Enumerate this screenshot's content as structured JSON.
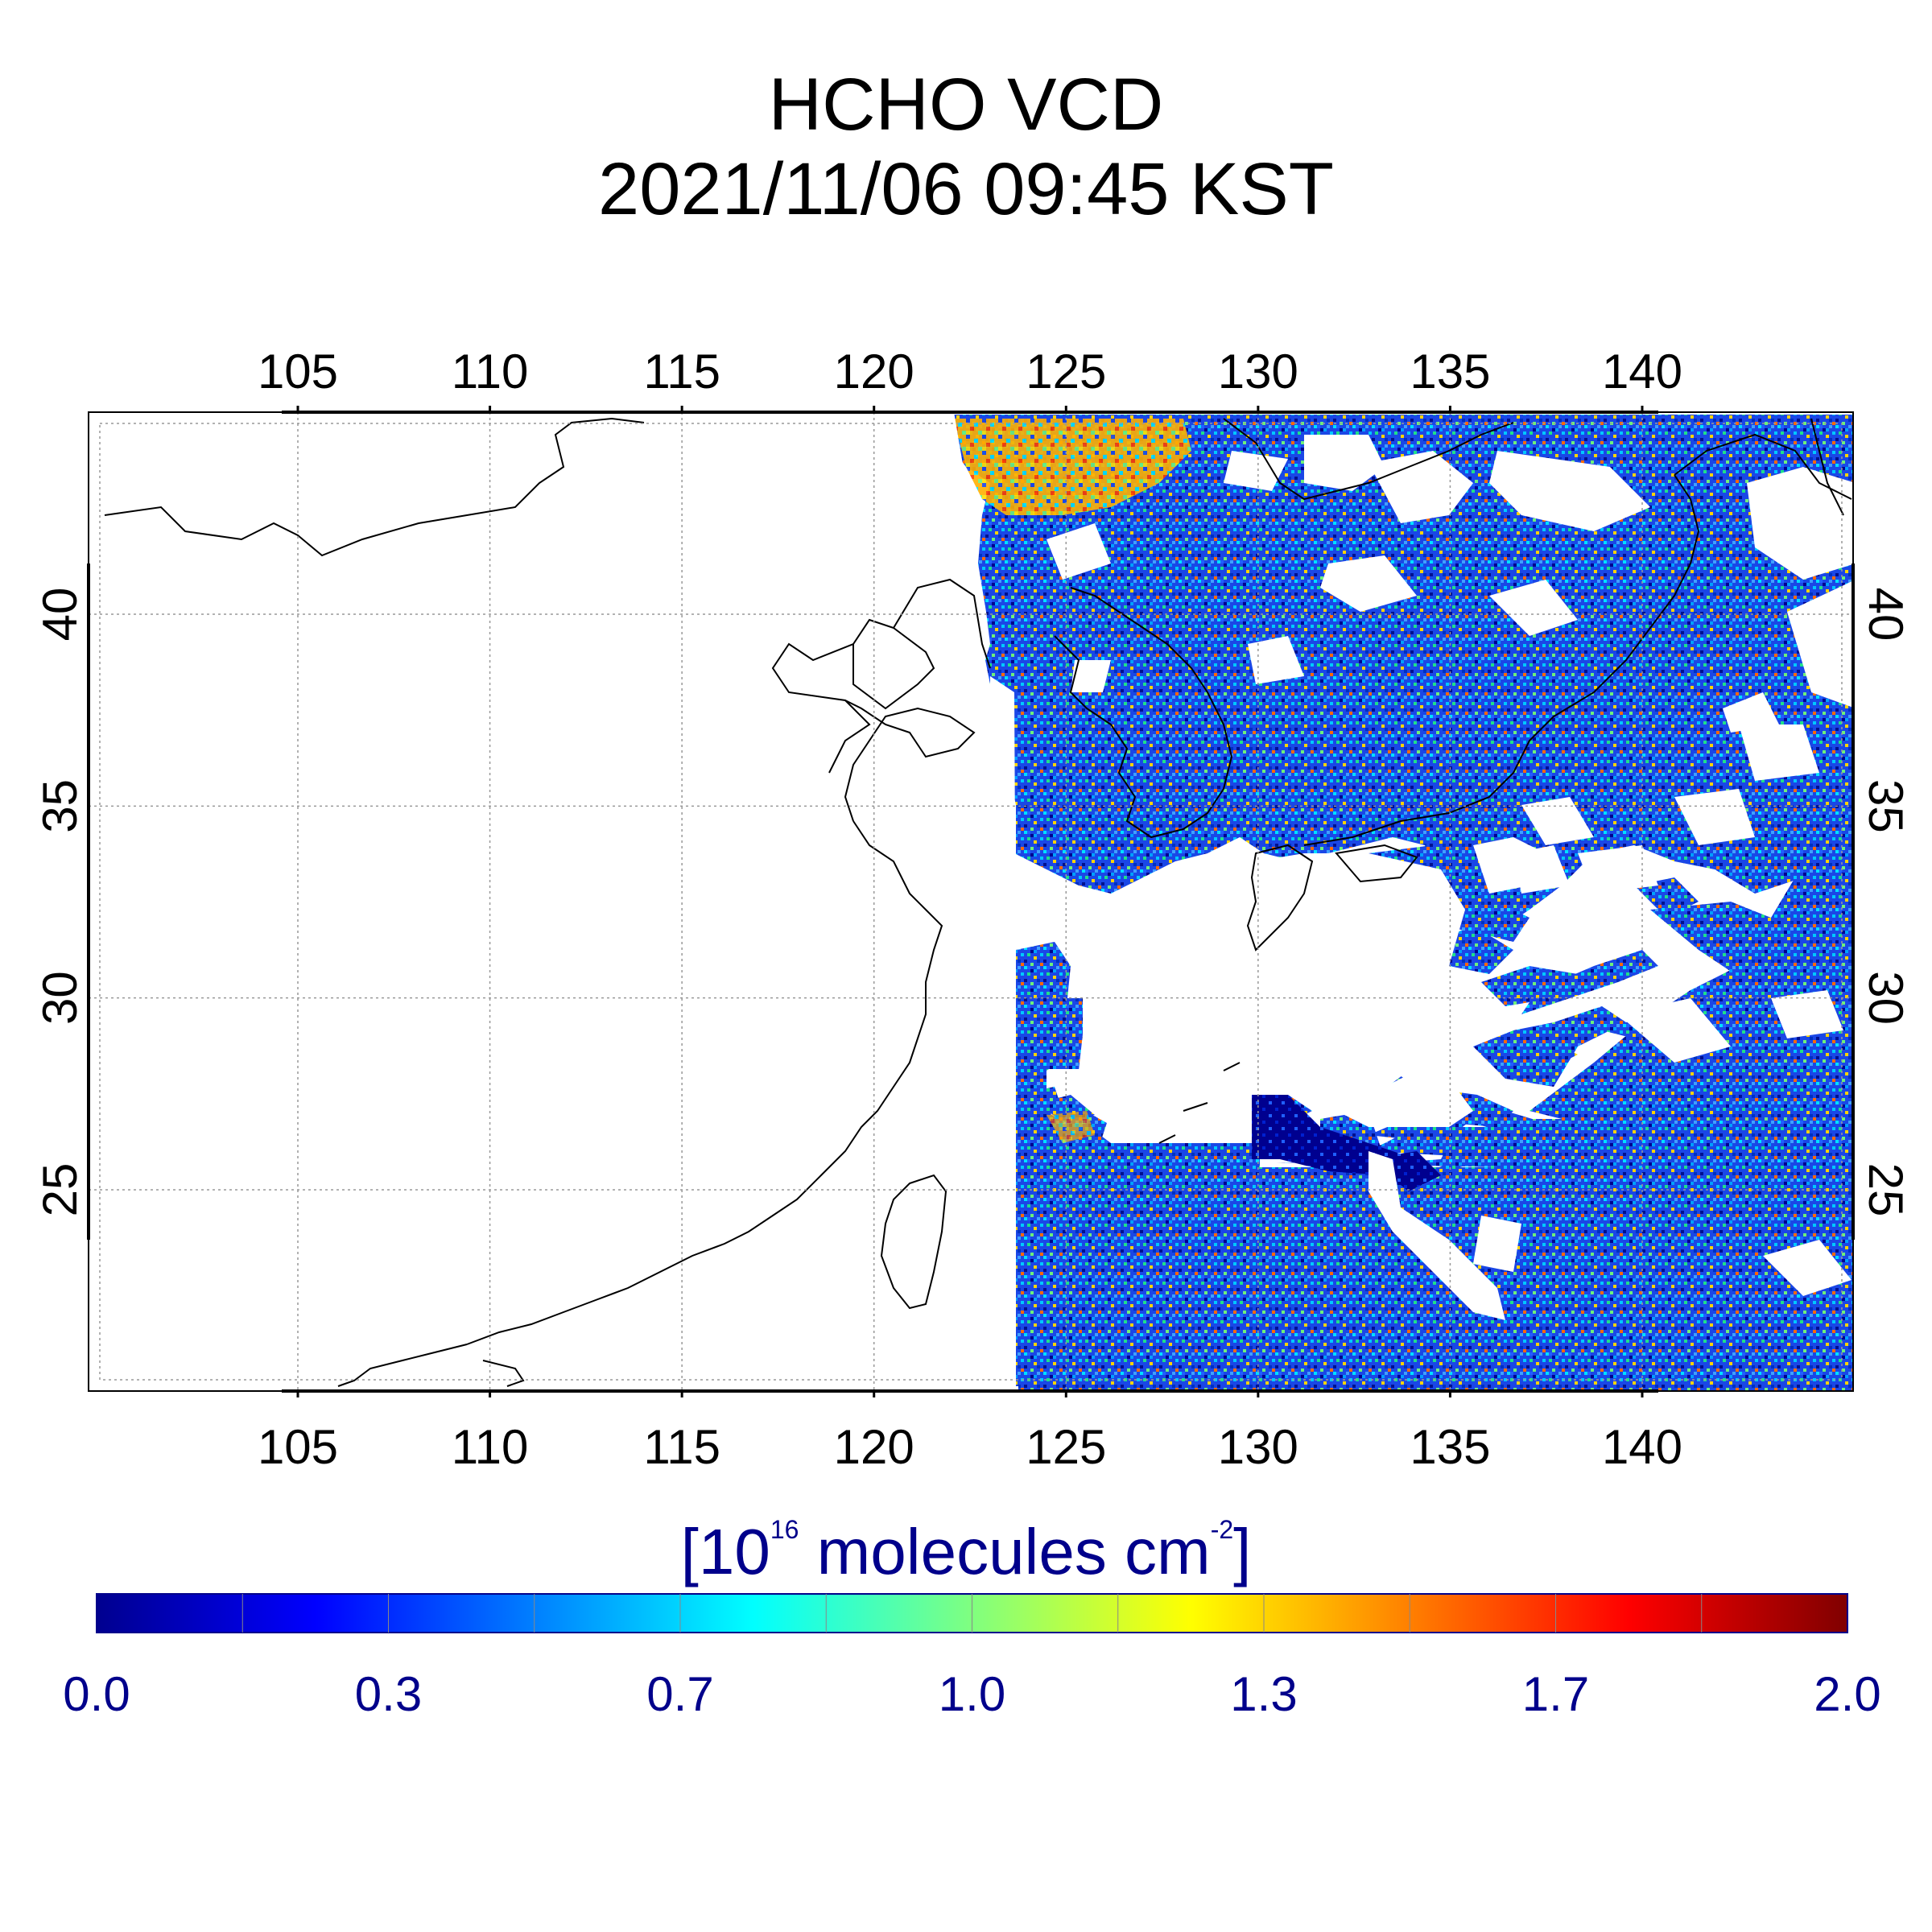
{
  "title": {
    "line1": "HCHO VCD",
    "line2": "2021/11/06 09:45 KST"
  },
  "map": {
    "lon_range": [
      100,
      146
    ],
    "lat_range": [
      20,
      45.5
    ],
    "lon_ticks": [
      "105",
      "110",
      "115",
      "120",
      "125",
      "130",
      "135",
      "140"
    ],
    "lat_ticks": [
      "25",
      "30",
      "35",
      "40"
    ],
    "grid": "dotted",
    "swath_lon_west_edge": 124,
    "data_colors": {
      "dominant": "#1a47e6",
      "low": "#00008f",
      "mid": "#00e0ff",
      "high": "#ff8c00",
      "coast": "#000000"
    }
  },
  "colorbar": {
    "unit_prefix": "[10",
    "unit_exp1": "16",
    "unit_mid": " molecules cm",
    "unit_exp2": "-2",
    "unit_suffix": "]",
    "min": 0.0,
    "max": 2.0,
    "tick_labels": [
      "0.0",
      "0.3",
      "0.7",
      "1.0",
      "1.3",
      "1.7",
      "2.0"
    ],
    "colormap": "jet",
    "label_color": "#00008b"
  }
}
